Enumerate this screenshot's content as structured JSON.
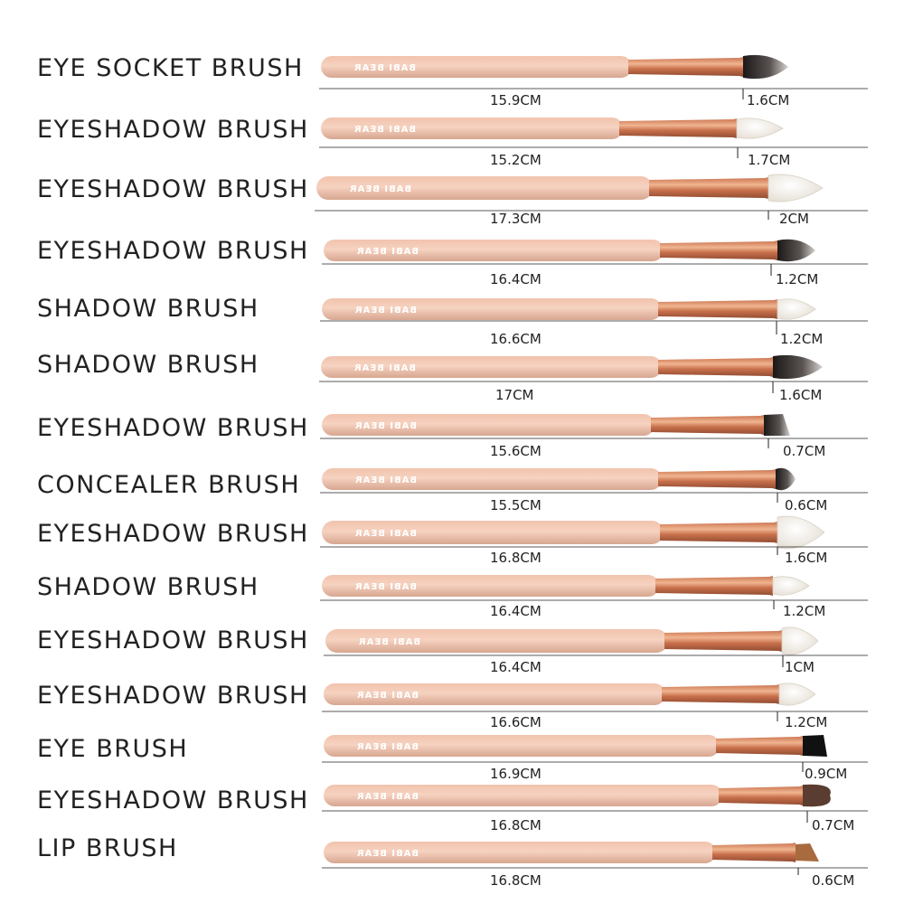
{
  "brand_text": "BABI BEAR",
  "colors": {
    "handle": "#f1c3ad",
    "handle_shade": "#d7a690",
    "ferrule": "#c8704c",
    "ferrule_light": "#f0b590",
    "brand_print": "#ffffff",
    "bristle_white": "#f3f0ea",
    "bristle_dark": "#3a3534",
    "bristle_black": "#111111",
    "bristle_brown": "#5a3d30",
    "bristle_tan": "#a86a3e",
    "measure_line": "#222222"
  },
  "brushes": [
    {
      "name": "EYE SOCKET BRUSH",
      "total_length": "15.9CM",
      "bristle_length": "1.6CM",
      "tip": "dark-fluffy"
    },
    {
      "name": "EYESHADOW BRUSH",
      "total_length": "15.2CM",
      "bristle_length": "1.7CM",
      "tip": "white-round"
    },
    {
      "name": "EYESHADOW BRUSH",
      "total_length": "17.3CM",
      "bristle_length": "2CM",
      "tip": "white-round"
    },
    {
      "name": "EYESHADOW BRUSH",
      "total_length": "16.4CM",
      "bristle_length": "1.2CM",
      "tip": "dark-fluffy"
    },
    {
      "name": "SHADOW BRUSH",
      "total_length": "16.6CM",
      "bristle_length": "1.2CM",
      "tip": "white-round"
    },
    {
      "name": "SHADOW BRUSH",
      "total_length": "17CM",
      "bristle_length": "1.6CM",
      "tip": "dark-fluffy"
    },
    {
      "name": "EYESHADOW BRUSH",
      "total_length": "15.6CM",
      "bristle_length": "0.7CM",
      "tip": "dark-angled"
    },
    {
      "name": "CONCEALER BRUSH",
      "total_length": "15.5CM",
      "bristle_length": "0.6CM",
      "tip": "dark-fluffy"
    },
    {
      "name": "EYESHADOW BRUSH",
      "total_length": "16.8CM",
      "bristle_length": "1.6CM",
      "tip": "white-round"
    },
    {
      "name": "SHADOW BRUSH",
      "total_length": "16.4CM",
      "bristle_length": "1.2CM",
      "tip": "white-pencil"
    },
    {
      "name": "EYESHADOW BRUSH",
      "total_length": "16.4CM",
      "bristle_length": "1CM",
      "tip": "white-round"
    },
    {
      "name": "EYESHADOW BRUSH",
      "total_length": "16.6CM",
      "bristle_length": "1.2CM",
      "tip": "white-round"
    },
    {
      "name": "EYE BRUSH",
      "total_length": "16.9CM",
      "bristle_length": "0.9CM",
      "tip": "black-flat"
    },
    {
      "name": "EYESHADOW BRUSH",
      "total_length": "16.8CM",
      "bristle_length": "0.7CM",
      "tip": "brown-round"
    },
    {
      "name": "LIP BRUSH",
      "total_length": "16.8CM",
      "bristle_length": "0.6CM",
      "tip": "tan-angled"
    }
  ]
}
